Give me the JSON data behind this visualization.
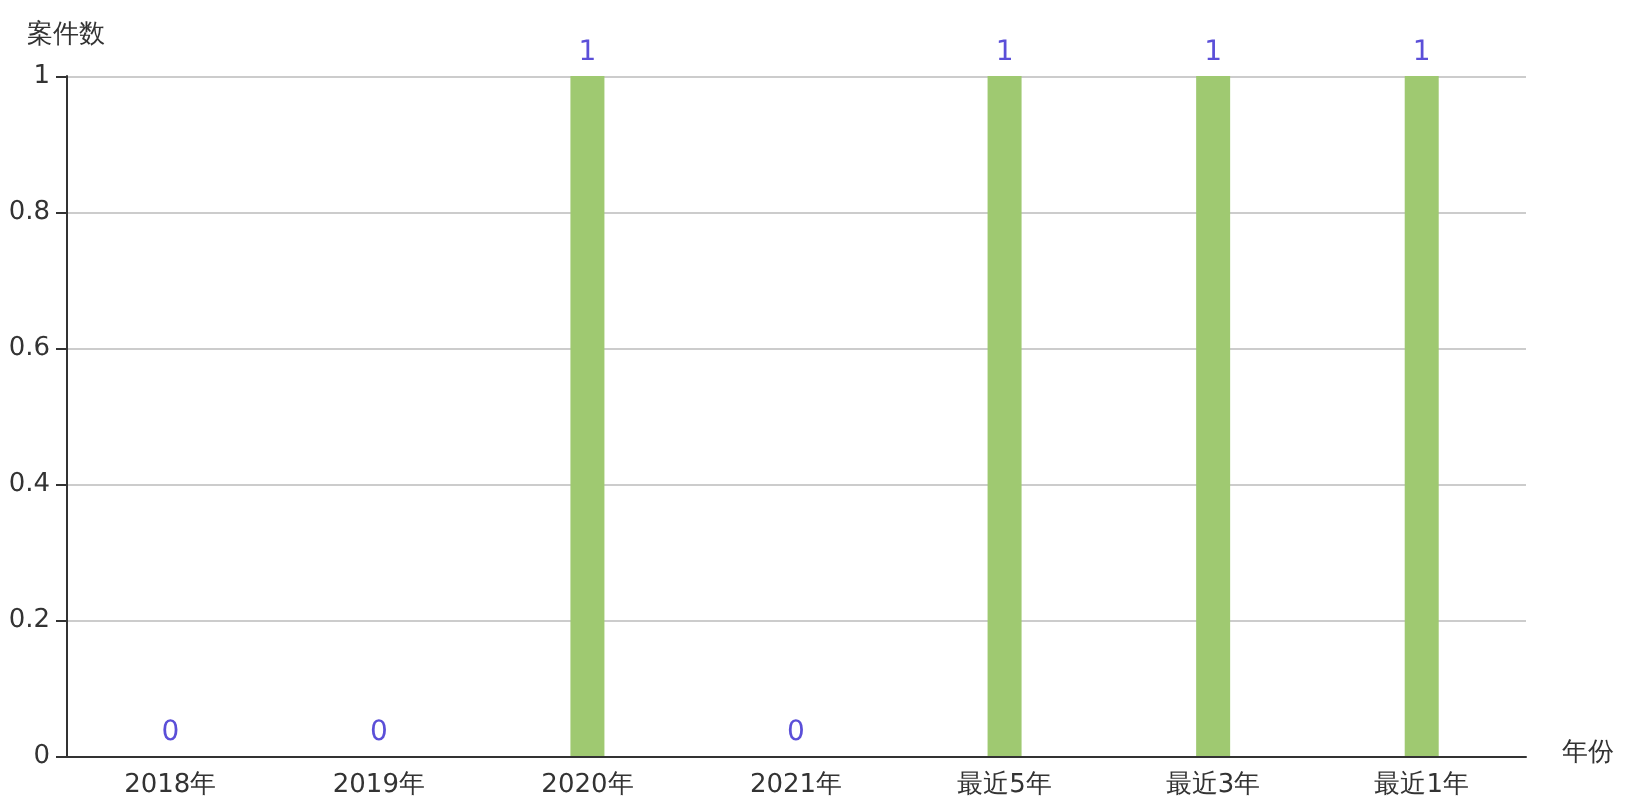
{
  "chart_data": {
    "type": "bar",
    "xlabel": "年份",
    "ylabel": "案件数",
    "categories": [
      "2018年",
      "2019年",
      "2020年",
      "2021年",
      "最近5年",
      "最近3年",
      "最近1年"
    ],
    "values": [
      0,
      0,
      1,
      0,
      1,
      1,
      1
    ],
    "color": "#9fc971",
    "ylim": [
      0,
      1
    ],
    "yticks": [
      0,
      0.2,
      0.4,
      0.6,
      0.8,
      1
    ],
    "grid": "y",
    "data_labels": true
  }
}
